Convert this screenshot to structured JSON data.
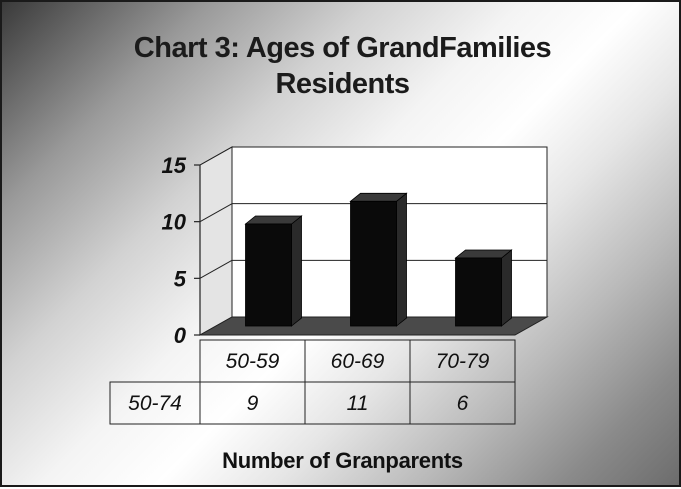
{
  "chart_data": {
    "type": "bar",
    "title_lines": [
      "Chart 3: Ages of GrandFamilies",
      "Residents"
    ],
    "categories": [
      "50-59",
      "60-69",
      "70-79"
    ],
    "series": [
      {
        "name": "50-74",
        "values": [
          9,
          11,
          6
        ]
      }
    ],
    "table_values": [
      "9",
      "11",
      "6"
    ],
    "xlabel": "Number of Granparents",
    "ylim": [
      0,
      15
    ],
    "yticks": [
      0,
      5,
      10,
      15
    ],
    "grid": true,
    "bar_color": "#0a0a0a",
    "floor_color": "#4a4a4a"
  }
}
